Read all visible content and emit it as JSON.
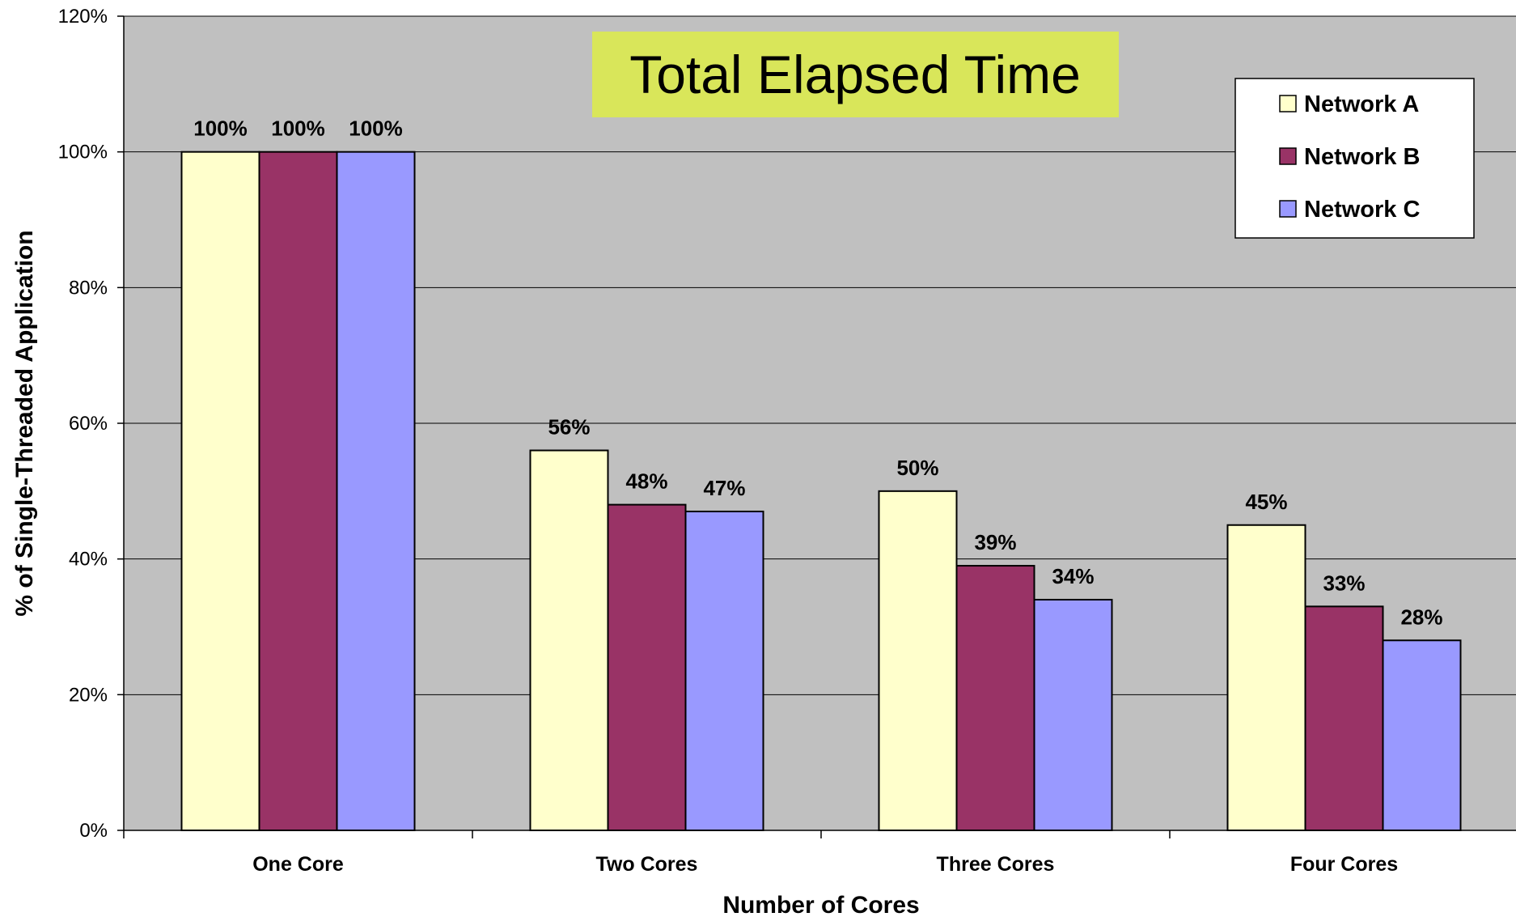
{
  "chart_data": {
    "type": "bar",
    "title": "Total Elapsed Time",
    "xlabel": "Number of Cores",
    "ylabel": "% of Single-Threaded Application",
    "categories": [
      "One Core",
      "Two Cores",
      "Three Cores",
      "Four Cores"
    ],
    "series": [
      {
        "name": "Network A",
        "color": "#ffffcc",
        "values": [
          100,
          56,
          50,
          45
        ],
        "labels": [
          "100%",
          "56%",
          "50%",
          "45%"
        ]
      },
      {
        "name": "Network B",
        "color": "#993366",
        "values": [
          100,
          48,
          39,
          33
        ],
        "labels": [
          "100%",
          "48%",
          "39%",
          "33%"
        ]
      },
      {
        "name": "Network C",
        "color": "#9999ff",
        "values": [
          100,
          47,
          34,
          28
        ],
        "labels": [
          "100%",
          "47%",
          "34%",
          "28%"
        ]
      }
    ],
    "ylim": [
      0,
      120
    ],
    "yticks": [
      0,
      20,
      40,
      60,
      80,
      100,
      120
    ],
    "ytick_labels": [
      "0%",
      "20%",
      "40%",
      "60%",
      "80%",
      "100%",
      "120%"
    ],
    "grid": true,
    "legend_position": "top-right",
    "plot_background": "#c0c0c0",
    "title_background": "#d9e65a"
  }
}
